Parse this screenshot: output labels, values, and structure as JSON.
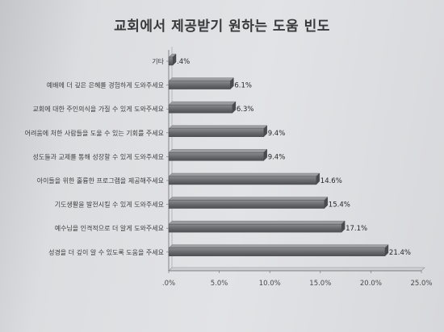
{
  "chart_data": {
    "type": "bar",
    "orientation": "horizontal",
    "title": "교회에서 제공받기 원하는 도움 빈도",
    "categories": [
      "기타",
      "예배에 더 깊은 은혜를 경험하게 도와주세요",
      "교회에 대한 주인의식을 가질 수 있게 도와주세요",
      "어려움에 처한 사람들을 도울 수 있는 기회를 주세요",
      "성도들과 교제를 통해 성장할 수 있게 도와주세요",
      "아이들을 위한 훌륭한 프로그램을 제공해주세요",
      "기도생활을 발전시킬 수 있게 도와주세요",
      "예수님을 인격적으로 더 알게 도와주세요",
      "성경을 더 깊이 알 수 있도록 도움을 주세요"
    ],
    "values": [
      0.4,
      6.1,
      6.3,
      9.4,
      9.4,
      14.6,
      15.4,
      17.1,
      21.4
    ],
    "value_labels": [
      ".4%",
      "6.1%",
      "6.3%",
      "9.4%",
      "9.4%",
      "14.6%",
      "15.4%",
      "17.1%",
      "21.4%"
    ],
    "x_ticks": [
      0,
      5,
      10,
      15,
      20,
      25
    ],
    "x_tick_labels": [
      ".0%",
      "5.0%",
      "10.0%",
      "15.0%",
      "20.0%",
      "25.0%"
    ],
    "xlim": [
      0,
      25
    ],
    "grid": false,
    "legend": "none",
    "bar_color": "#6e6f72"
  }
}
